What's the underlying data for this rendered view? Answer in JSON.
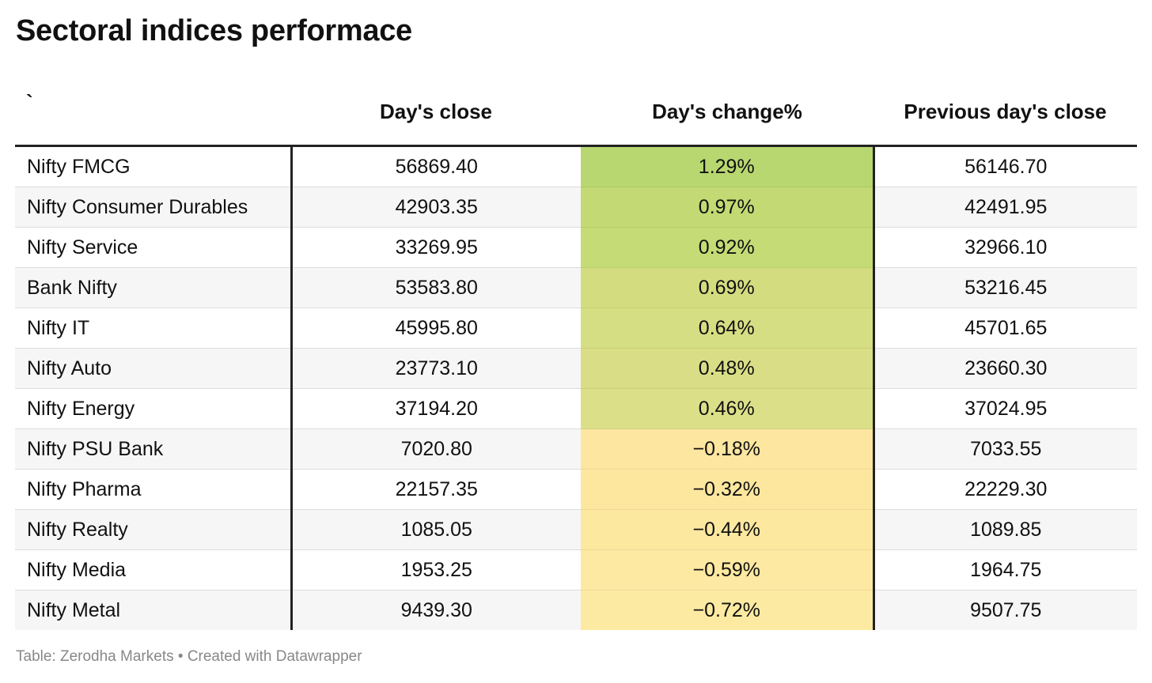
{
  "title": "Sectoral indices performace",
  "footer": {
    "source_label": "Table: Zerodha Markets",
    "separator": " • ",
    "credit": "Created with Datawrapper"
  },
  "chart_data": {
    "type": "table",
    "title": "Sectoral indices performace",
    "columns": [
      "`",
      "Day's close",
      "Day's change%",
      "Previous day's close"
    ],
    "rows": [
      {
        "name": "Nifty FMCG",
        "close": "56869.40",
        "change": "1.29%",
        "prev": "56146.70",
        "color": "#b8d770"
      },
      {
        "name": "Nifty Consumer Durables",
        "close": "42903.35",
        "change": "0.97%",
        "prev": "42491.95",
        "color": "#c3da74"
      },
      {
        "name": "Nifty Service",
        "close": "33269.95",
        "change": "0.92%",
        "prev": "32966.10",
        "color": "#c5db75"
      },
      {
        "name": "Bank Nifty",
        "close": "53583.80",
        "change": "0.69%",
        "prev": "53216.45",
        "color": "#d3dd80"
      },
      {
        "name": "Nifty IT",
        "close": "45995.80",
        "change": "0.64%",
        "prev": "45701.65",
        "color": "#d6de83"
      },
      {
        "name": "Nifty Auto",
        "close": "23773.10",
        "change": "0.48%",
        "prev": "23660.30",
        "color": "#d9de86"
      },
      {
        "name": "Nifty Energy",
        "close": "37194.20",
        "change": "0.46%",
        "prev": "37024.95",
        "color": "#dbdf88"
      },
      {
        "name": "Nifty PSU Bank",
        "close": "7020.80",
        "change": "−0.18%",
        "prev": "7033.55",
        "color": "#fde6a0"
      },
      {
        "name": "Nifty Pharma",
        "close": "22157.35",
        "change": "−0.32%",
        "prev": "22229.30",
        "color": "#fde79f"
      },
      {
        "name": "Nifty Realty",
        "close": "1085.05",
        "change": "−0.44%",
        "prev": "1089.85",
        "color": "#fde8a0"
      },
      {
        "name": "Nifty Media",
        "close": "1953.25",
        "change": "−0.59%",
        "prev": "1964.75",
        "color": "#fde9a1"
      },
      {
        "name": "Nifty Metal",
        "close": "9439.30",
        "change": "−0.72%",
        "prev": "9507.75",
        "color": "#fdeaa2"
      }
    ]
  }
}
